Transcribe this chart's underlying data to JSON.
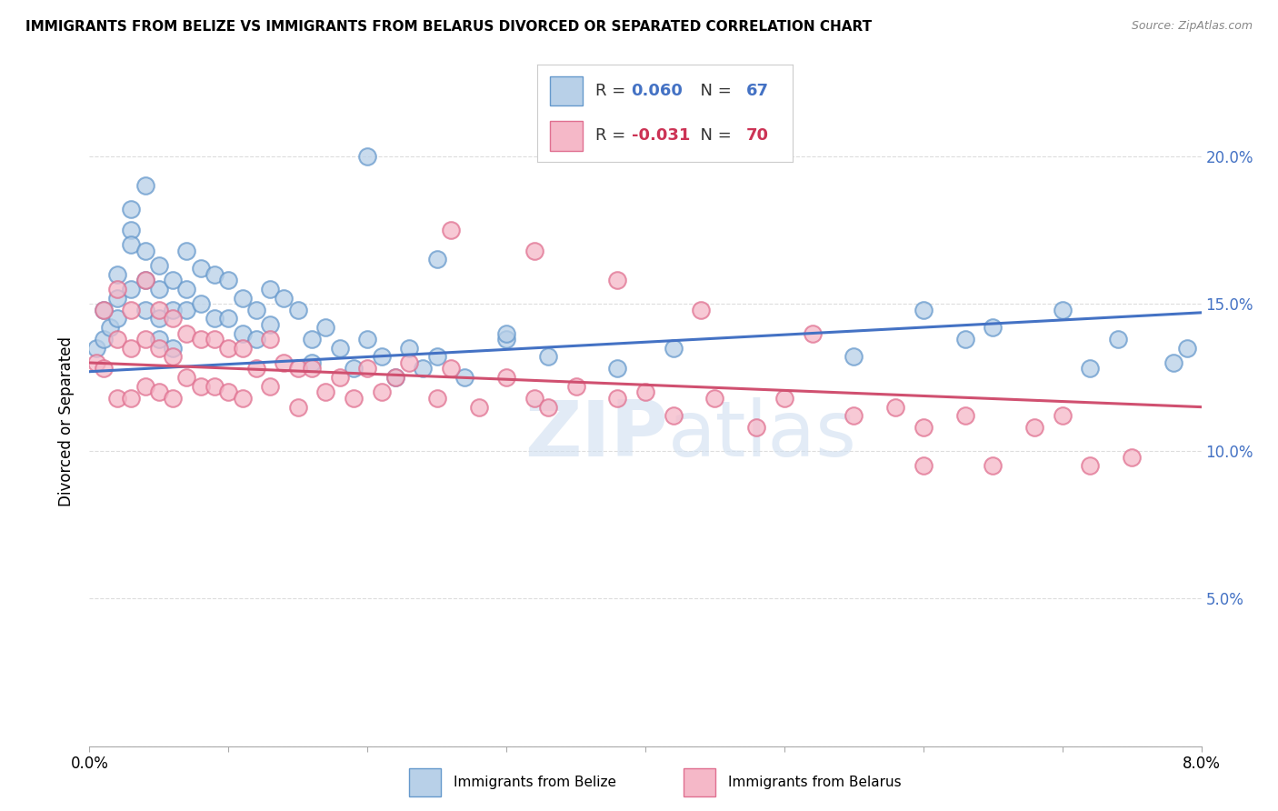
{
  "title": "IMMIGRANTS FROM BELIZE VS IMMIGRANTS FROM BELARUS DIVORCED OR SEPARATED CORRELATION CHART",
  "source": "Source: ZipAtlas.com",
  "ylabel": "Divorced or Separated",
  "xlim": [
    0.0,
    0.08
  ],
  "ylim": [
    0.0,
    0.22
  ],
  "yticks": [
    0.0,
    0.05,
    0.1,
    0.15,
    0.2
  ],
  "ytick_labels": [
    "",
    "5.0%",
    "10.0%",
    "15.0%",
    "20.0%"
  ],
  "xticks": [
    0.0,
    0.01,
    0.02,
    0.03,
    0.04,
    0.05,
    0.06,
    0.07,
    0.08
  ],
  "color_belize_fill": "#b8d0e8",
  "color_belize_edge": "#6699cc",
  "color_belarus_fill": "#f5b8c8",
  "color_belarus_edge": "#e07090",
  "color_belize_line": "#4472c4",
  "color_belarus_line": "#d05070",
  "color_r_belize": "#4472c4",
  "color_r_belarus": "#cc3355",
  "background": "#ffffff",
  "grid_color": "#dddddd",
  "watermark_color": "#d0dff0",
  "belize_x": [
    0.0005,
    0.001,
    0.001,
    0.0015,
    0.002,
    0.002,
    0.002,
    0.003,
    0.003,
    0.003,
    0.003,
    0.004,
    0.004,
    0.004,
    0.004,
    0.005,
    0.005,
    0.005,
    0.005,
    0.006,
    0.006,
    0.006,
    0.007,
    0.007,
    0.007,
    0.008,
    0.008,
    0.009,
    0.009,
    0.01,
    0.01,
    0.011,
    0.011,
    0.012,
    0.012,
    0.013,
    0.013,
    0.014,
    0.015,
    0.016,
    0.016,
    0.017,
    0.018,
    0.019,
    0.02,
    0.021,
    0.022,
    0.023,
    0.024,
    0.025,
    0.027,
    0.03,
    0.033,
    0.038,
    0.042,
    0.055,
    0.06,
    0.063,
    0.065,
    0.07,
    0.072,
    0.074,
    0.078,
    0.079,
    0.02,
    0.025,
    0.03
  ],
  "belize_y": [
    0.135,
    0.148,
    0.138,
    0.142,
    0.152,
    0.16,
    0.145,
    0.175,
    0.182,
    0.17,
    0.155,
    0.19,
    0.168,
    0.158,
    0.148,
    0.163,
    0.155,
    0.145,
    0.138,
    0.158,
    0.148,
    0.135,
    0.168,
    0.155,
    0.148,
    0.162,
    0.15,
    0.16,
    0.145,
    0.158,
    0.145,
    0.152,
    0.14,
    0.148,
    0.138,
    0.155,
    0.143,
    0.152,
    0.148,
    0.138,
    0.13,
    0.142,
    0.135,
    0.128,
    0.138,
    0.132,
    0.125,
    0.135,
    0.128,
    0.132,
    0.125,
    0.138,
    0.132,
    0.128,
    0.135,
    0.132,
    0.148,
    0.138,
    0.142,
    0.148,
    0.128,
    0.138,
    0.13,
    0.135,
    0.2,
    0.165,
    0.14
  ],
  "belarus_x": [
    0.0005,
    0.001,
    0.001,
    0.002,
    0.002,
    0.002,
    0.003,
    0.003,
    0.003,
    0.004,
    0.004,
    0.004,
    0.005,
    0.005,
    0.005,
    0.006,
    0.006,
    0.006,
    0.007,
    0.007,
    0.008,
    0.008,
    0.009,
    0.009,
    0.01,
    0.01,
    0.011,
    0.011,
    0.012,
    0.013,
    0.013,
    0.014,
    0.015,
    0.015,
    0.016,
    0.017,
    0.018,
    0.019,
    0.02,
    0.021,
    0.022,
    0.023,
    0.025,
    0.026,
    0.028,
    0.03,
    0.032,
    0.033,
    0.035,
    0.038,
    0.04,
    0.042,
    0.045,
    0.048,
    0.05,
    0.055,
    0.058,
    0.06,
    0.063,
    0.065,
    0.068,
    0.07,
    0.072,
    0.075,
    0.026,
    0.032,
    0.038,
    0.044,
    0.052,
    0.06
  ],
  "belarus_y": [
    0.13,
    0.148,
    0.128,
    0.155,
    0.138,
    0.118,
    0.148,
    0.135,
    0.118,
    0.158,
    0.138,
    0.122,
    0.148,
    0.135,
    0.12,
    0.145,
    0.132,
    0.118,
    0.14,
    0.125,
    0.138,
    0.122,
    0.138,
    0.122,
    0.135,
    0.12,
    0.135,
    0.118,
    0.128,
    0.138,
    0.122,
    0.13,
    0.128,
    0.115,
    0.128,
    0.12,
    0.125,
    0.118,
    0.128,
    0.12,
    0.125,
    0.13,
    0.118,
    0.128,
    0.115,
    0.125,
    0.118,
    0.115,
    0.122,
    0.118,
    0.12,
    0.112,
    0.118,
    0.108,
    0.118,
    0.112,
    0.115,
    0.108,
    0.112,
    0.095,
    0.108,
    0.112,
    0.095,
    0.098,
    0.175,
    0.168,
    0.158,
    0.148,
    0.14,
    0.095
  ],
  "belize_trend_x": [
    0.0,
    0.08
  ],
  "belize_trend_y": [
    0.127,
    0.147
  ],
  "belarus_trend_x": [
    0.0,
    0.08
  ],
  "belarus_trend_y": [
    0.13,
    0.115
  ]
}
